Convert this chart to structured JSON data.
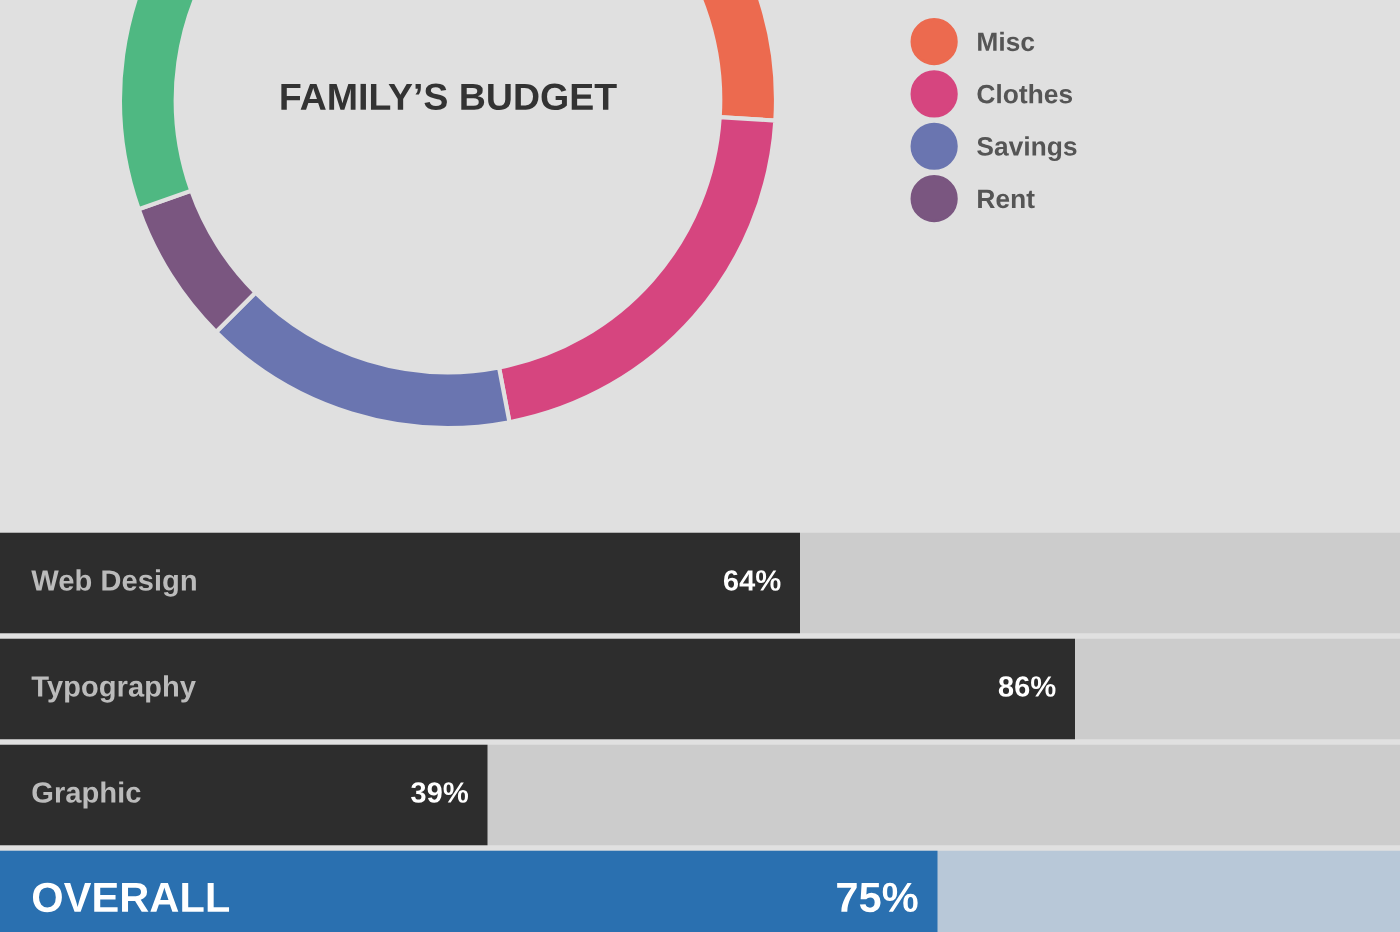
{
  "chart_data": [
    {
      "type": "donut",
      "title": "FAMILY’S BUDGET",
      "categories": [
        "Misc",
        "Clothes",
        "Savings",
        "Rent",
        null
      ],
      "values": [
        26.0,
        21.0,
        15.5,
        7.1,
        30.4
      ],
      "colors": [
        "#ec6a4f",
        "#d6457f",
        "#6a75b0",
        "#7a5680",
        "#4fb882"
      ],
      "legend": "right"
    },
    {
      "type": "bar",
      "orientation": "horizontal",
      "categories": [
        "Web Design",
        "Typography",
        "Graphic",
        "OVERALL"
      ],
      "values": [
        64,
        86,
        39,
        75
      ],
      "colors": [
        "#2d2d2d",
        "#2d2d2d",
        "#2d2d2d",
        "#2a70b0"
      ],
      "value_labels": [
        "64%",
        "86%",
        "39%",
        "75%"
      ],
      "xlim": [
        0,
        112
      ]
    }
  ]
}
